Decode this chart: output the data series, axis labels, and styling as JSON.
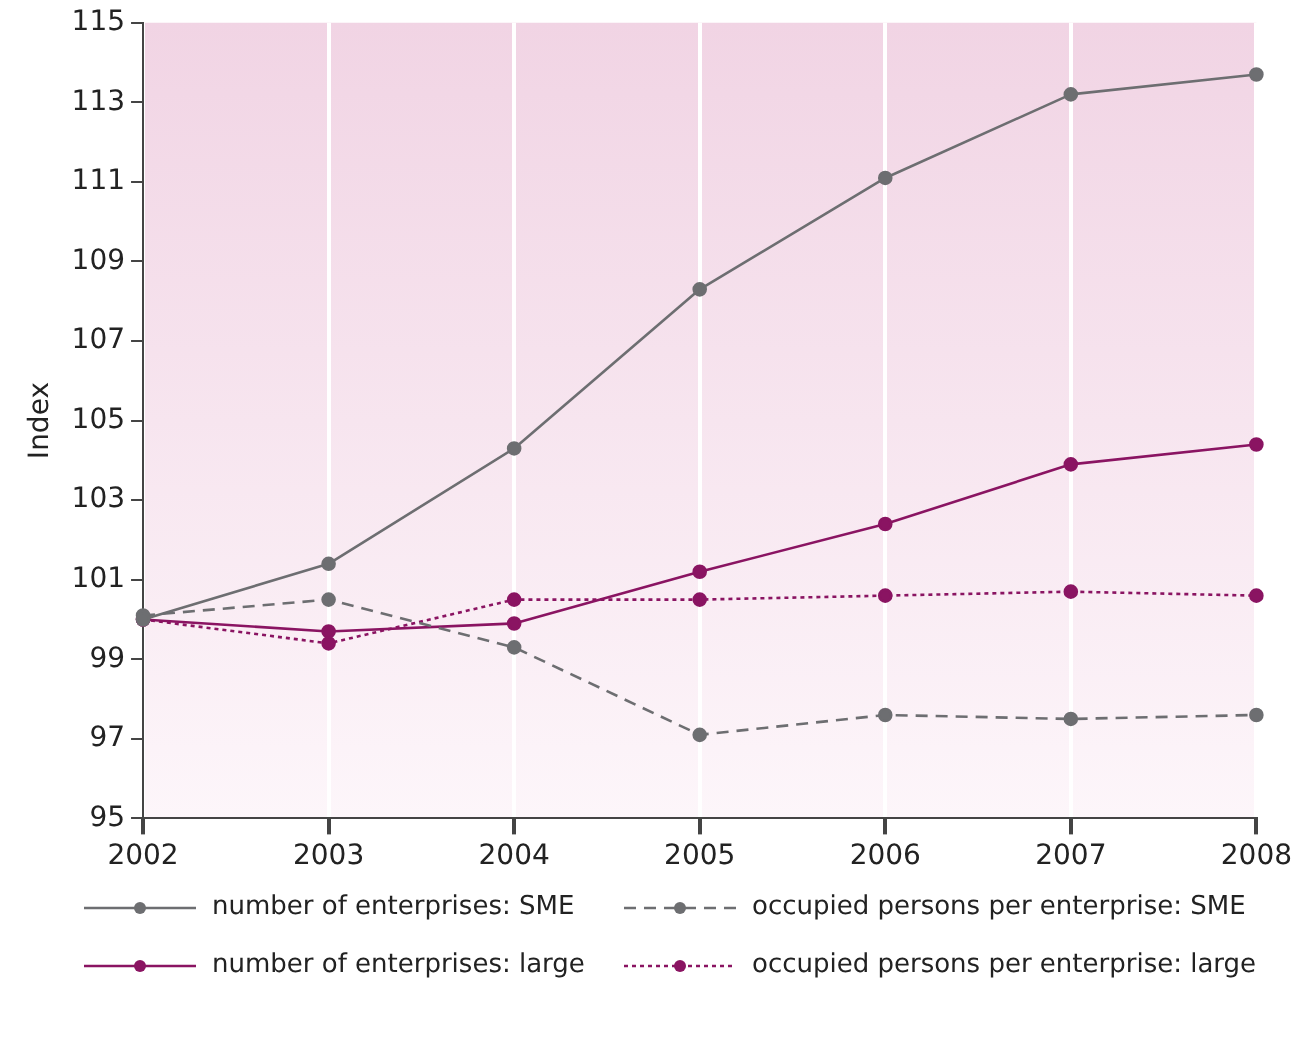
{
  "chart_data": {
    "type": "line",
    "ylabel": "Index",
    "categories": [
      "2002",
      "2003",
      "2004",
      "2005",
      "2006",
      "2007",
      "2008"
    ],
    "series": [
      {
        "name": "number of enterprises: SME",
        "color": "#6d6e71",
        "line_style": "solid",
        "values": [
          100.0,
          101.4,
          104.3,
          108.3,
          111.1,
          113.2,
          113.7
        ]
      },
      {
        "name": "occupied persons per enterprise: SME",
        "color": "#6d6e71",
        "line_style": "dashed",
        "values": [
          100.1,
          100.5,
          99.3,
          97.1,
          97.6,
          97.5,
          97.6
        ]
      },
      {
        "name": "number of enterprises: large",
        "color": "#8a1462",
        "line_style": "solid",
        "values": [
          100.0,
          99.7,
          99.9,
          101.2,
          102.4,
          103.9,
          104.4
        ]
      },
      {
        "name": "occupied persons per enterprise: large",
        "color": "#8a1462",
        "line_style": "dotted",
        "values": [
          100.0,
          99.4,
          100.5,
          100.5,
          100.6,
          100.7,
          100.6
        ]
      }
    ],
    "ylim": [
      95,
      115
    ],
    "yticks": [
      95,
      97,
      99,
      101,
      103,
      105,
      107,
      109,
      111,
      113,
      115
    ],
    "grid": "x",
    "legend": "bottom",
    "marker": "circle"
  }
}
